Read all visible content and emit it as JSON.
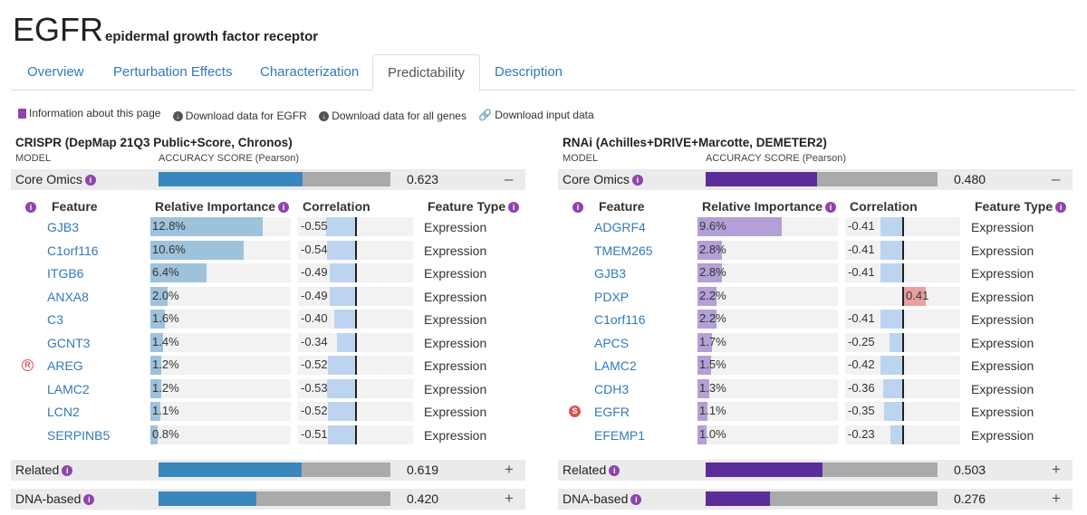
{
  "gene": {
    "symbol": "EGFR",
    "full_name": "epidermal growth factor receptor"
  },
  "tabs": [
    "Overview",
    "Perturbation Effects",
    "Characterization",
    "Predictability",
    "Description"
  ],
  "active_tab": "Predictability",
  "links": {
    "info": "Information about this page",
    "dl_gene": "Download data for EGFR",
    "dl_all": "Download data for all genes",
    "dl_input": "Download input data"
  },
  "headers": {
    "model": "MODEL",
    "accuracy": "ACCURACY SCORE (Pearson)",
    "feature": "Feature",
    "importance": "Relative Importance",
    "correlation": "Correlation",
    "ftype": "Feature Type"
  },
  "panels": [
    {
      "title": "CRISPR (DepMap 21Q3 Public+Score, Chronos)",
      "color": "#3a87bd",
      "light": "#9ec2db",
      "core": {
        "label": "Core Omics",
        "score": 0.623,
        "score_text": "0.623",
        "toggle": "–"
      },
      "features": [
        {
          "name": "GJB3",
          "badge": "",
          "imp": 12.8,
          "imp_text": "12.8%",
          "corr": -0.55,
          "corr_text": "-0.55",
          "type": "Expression"
        },
        {
          "name": "C1orf116",
          "badge": "",
          "imp": 10.6,
          "imp_text": "10.6%",
          "corr": -0.54,
          "corr_text": "-0.54",
          "type": "Expression"
        },
        {
          "name": "ITGB6",
          "badge": "",
          "imp": 6.4,
          "imp_text": "6.4%",
          "corr": -0.49,
          "corr_text": "-0.49",
          "type": "Expression"
        },
        {
          "name": "ANXA8",
          "badge": "",
          "imp": 2.0,
          "imp_text": "2.0%",
          "corr": -0.49,
          "corr_text": "-0.49",
          "type": "Expression"
        },
        {
          "name": "C3",
          "badge": "",
          "imp": 1.6,
          "imp_text": "1.6%",
          "corr": -0.4,
          "corr_text": "-0.40",
          "type": "Expression"
        },
        {
          "name": "GCNT3",
          "badge": "",
          "imp": 1.4,
          "imp_text": "1.4%",
          "corr": -0.34,
          "corr_text": "-0.34",
          "type": "Expression"
        },
        {
          "name": "AREG",
          "badge": "R",
          "imp": 1.2,
          "imp_text": "1.2%",
          "corr": -0.52,
          "corr_text": "-0.52",
          "type": "Expression"
        },
        {
          "name": "LAMC2",
          "badge": "",
          "imp": 1.2,
          "imp_text": "1.2%",
          "corr": -0.53,
          "corr_text": "-0.53",
          "type": "Expression"
        },
        {
          "name": "LCN2",
          "badge": "",
          "imp": 1.1,
          "imp_text": "1.1%",
          "corr": -0.52,
          "corr_text": "-0.52",
          "type": "Expression"
        },
        {
          "name": "SERPINB5",
          "badge": "",
          "imp": 0.8,
          "imp_text": "0.8%",
          "corr": -0.51,
          "corr_text": "-0.51",
          "type": "Expression"
        }
      ],
      "related": {
        "label": "Related",
        "score": 0.619,
        "score_text": "0.619",
        "toggle": "+"
      },
      "dna": {
        "label": "DNA-based",
        "score": 0.42,
        "score_text": "0.420",
        "toggle": "+"
      }
    },
    {
      "title": "RNAi (Achilles+DRIVE+Marcotte, DEMETER2)",
      "color": "#5b2d99",
      "light": "#b3a0d6",
      "core": {
        "label": "Core Omics",
        "score": 0.48,
        "score_text": "0.480",
        "toggle": "–"
      },
      "features": [
        {
          "name": "ADGRF4",
          "badge": "",
          "imp": 9.6,
          "imp_text": "9.6%",
          "corr": -0.41,
          "corr_text": "-0.41",
          "type": "Expression"
        },
        {
          "name": "TMEM265",
          "badge": "",
          "imp": 2.8,
          "imp_text": "2.8%",
          "corr": -0.41,
          "corr_text": "-0.41",
          "type": "Expression"
        },
        {
          "name": "GJB3",
          "badge": "",
          "imp": 2.8,
          "imp_text": "2.8%",
          "corr": -0.41,
          "corr_text": "-0.41",
          "type": "Expression"
        },
        {
          "name": "PDXP",
          "badge": "",
          "imp": 2.2,
          "imp_text": "2.2%",
          "corr": 0.41,
          "corr_text": "0.41",
          "type": "Expression"
        },
        {
          "name": "C1orf116",
          "badge": "",
          "imp": 2.2,
          "imp_text": "2.2%",
          "corr": -0.41,
          "corr_text": "-0.41",
          "type": "Expression"
        },
        {
          "name": "APCS",
          "badge": "",
          "imp": 1.7,
          "imp_text": "1.7%",
          "corr": -0.25,
          "corr_text": "-0.25",
          "type": "Expression"
        },
        {
          "name": "LAMC2",
          "badge": "",
          "imp": 1.5,
          "imp_text": "1.5%",
          "corr": -0.42,
          "corr_text": "-0.42",
          "type": "Expression"
        },
        {
          "name": "CDH3",
          "badge": "",
          "imp": 1.3,
          "imp_text": "1.3%",
          "corr": -0.36,
          "corr_text": "-0.36",
          "type": "Expression"
        },
        {
          "name": "EGFR",
          "badge": "S",
          "imp": 1.1,
          "imp_text": "1.1%",
          "corr": -0.35,
          "corr_text": "-0.35",
          "type": "Expression"
        },
        {
          "name": "EFEMP1",
          "badge": "",
          "imp": 1.0,
          "imp_text": "1.0%",
          "corr": -0.23,
          "corr_text": "-0.23",
          "type": "Expression"
        }
      ],
      "related": {
        "label": "Related",
        "score": 0.503,
        "score_text": "0.503",
        "toggle": "+"
      },
      "dna": {
        "label": "DNA-based",
        "score": 0.276,
        "score_text": "0.276",
        "toggle": "+"
      }
    }
  ]
}
